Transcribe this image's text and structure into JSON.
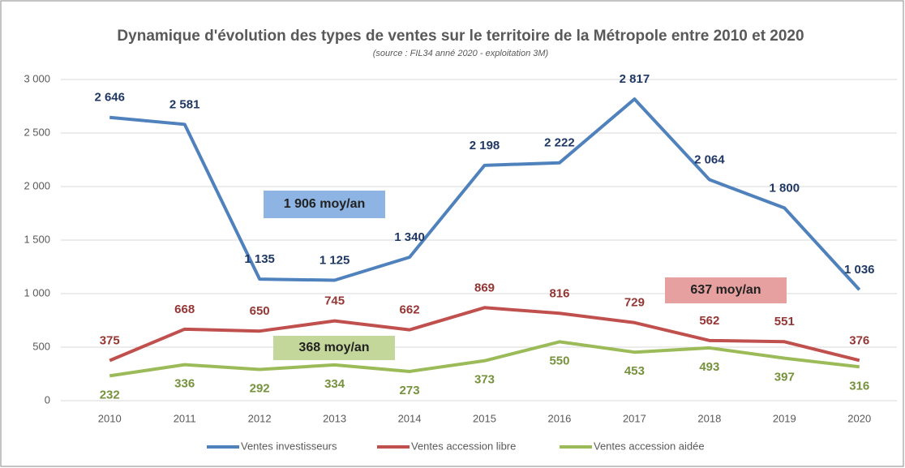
{
  "chart_data": {
    "type": "line",
    "title": "Dynamique d'évolution des types de ventes sur le territoire de la Métropole entre 2010 et 2020",
    "subtitle": "(source : FIL34 anné 2020 - exploitation 3M)",
    "categories": [
      "2010",
      "2011",
      "2012",
      "2013",
      "2014",
      "2015",
      "2016",
      "2017",
      "2018",
      "2019",
      "2020"
    ],
    "series": [
      {
        "name": "Ventes investisseurs",
        "color": "#4f81bd",
        "label_color": "#1f3864",
        "values": [
          2646,
          2581,
          1135,
          1125,
          1340,
          2198,
          2222,
          2817,
          2064,
          1800,
          1036
        ],
        "value_labels": [
          "2 646",
          "2 581",
          "1 135",
          "1 125",
          "1 340",
          "2 198",
          "2 222",
          "2 817",
          "2 064",
          "1 800",
          "1 036"
        ]
      },
      {
        "name": "Ventes accession libre",
        "color": "#c0504d",
        "label_color": "#943634",
        "values": [
          375,
          668,
          650,
          745,
          662,
          869,
          816,
          729,
          562,
          551,
          376
        ]
      },
      {
        "name": "Ventes accession aidée",
        "color": "#9bbb59",
        "label_color": "#76923c",
        "values": [
          232,
          336,
          292,
          334,
          273,
          373,
          550,
          453,
          493,
          397,
          316
        ]
      }
    ],
    "annotations": [
      {
        "text": "1 906 moy/an",
        "color": "#8db4e2"
      },
      {
        "text": "637 moy/an",
        "color": "#e6a0a0"
      },
      {
        "text": "368 moy/an",
        "color": "#c4d79b"
      }
    ],
    "ylim": [
      0,
      3000
    ],
    "yticks": [
      0,
      500,
      {
        "value": 1000,
        "label": "1 000"
      },
      {
        "value": 1500,
        "label": "1 500"
      },
      {
        "value": 2000,
        "label": "2 000"
      },
      {
        "value": 2500,
        "label": "2 500"
      },
      {
        "value": 3000,
        "label": "3 000"
      }
    ],
    "grid": true,
    "legend": "bottom"
  }
}
